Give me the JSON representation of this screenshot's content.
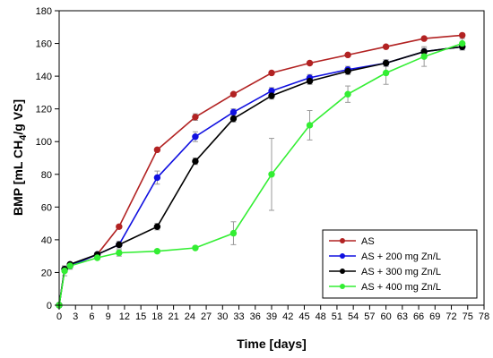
{
  "chart_data": {
    "type": "line",
    "xlabel": "Time [days]",
    "ylabel": "BMP [mL CH",
    "ylabel_sub": "4",
    "ylabel_tail": "/g VS]",
    "xlim": [
      0,
      78
    ],
    "ylim": [
      0,
      180
    ],
    "xticks": [
      0,
      3,
      6,
      9,
      12,
      15,
      18,
      21,
      24,
      27,
      30,
      33,
      36,
      39,
      42,
      45,
      48,
      51,
      54,
      57,
      60,
      63,
      66,
      69,
      72,
      75,
      78
    ],
    "yticks": [
      0,
      20,
      40,
      60,
      80,
      100,
      120,
      140,
      160,
      180
    ],
    "grid": false,
    "legend_position": "bottom-right",
    "series": [
      {
        "name": "AS",
        "color": "#b22222",
        "x": [
          0,
          1,
          2,
          7,
          11,
          18,
          25,
          32,
          39,
          46,
          53,
          60,
          67,
          74
        ],
        "y": [
          0,
          22,
          24,
          31,
          48,
          95,
          115,
          129,
          142,
          148,
          153,
          158,
          163,
          165
        ],
        "err": [
          0,
          2,
          1,
          1,
          1,
          1,
          2,
          1,
          1,
          1,
          1,
          1,
          1,
          1
        ]
      },
      {
        "name": "AS + 200 mg Zn/L",
        "color": "#1010e0",
        "x": [
          0,
          1,
          2,
          7,
          11,
          18,
          25,
          32,
          39,
          46,
          53,
          60,
          67,
          74
        ],
        "y": [
          0,
          22,
          24,
          31,
          37,
          78,
          103,
          118,
          131,
          139,
          144,
          148,
          155,
          158
        ],
        "err": [
          0,
          2,
          1,
          1,
          2,
          4,
          3,
          2,
          2,
          2,
          2,
          2,
          2,
          2
        ]
      },
      {
        "name": "AS + 300 mg Zn/L",
        "color": "#000000",
        "x": [
          0,
          1,
          2,
          7,
          11,
          18,
          25,
          32,
          39,
          46,
          53,
          60,
          67,
          74
        ],
        "y": [
          0,
          22,
          25,
          31,
          37,
          48,
          88,
          114,
          128,
          137,
          143,
          148,
          155,
          158
        ],
        "err": [
          0,
          2,
          1,
          1,
          1,
          2,
          2,
          2,
          2,
          2,
          2,
          2,
          2,
          2
        ]
      },
      {
        "name": "AS + 400 mg Zn/L",
        "color": "#33ee33",
        "x": [
          0,
          1,
          2,
          7,
          11,
          18,
          25,
          32,
          39,
          46,
          53,
          60,
          67,
          74
        ],
        "y": [
          0,
          21,
          24,
          29,
          32,
          33,
          35,
          44,
          80,
          110,
          129,
          142,
          152,
          160
        ],
        "err": [
          0,
          3,
          2,
          1,
          2,
          1,
          1,
          7,
          22,
          9,
          5,
          7,
          6,
          3
        ]
      }
    ]
  }
}
